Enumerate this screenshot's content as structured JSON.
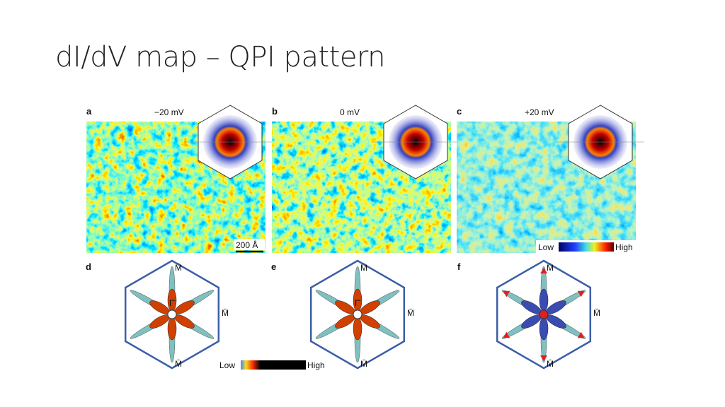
{
  "title": "dI/dV map – QPI pattern",
  "figure": {
    "top_panels": [
      {
        "label": "a",
        "energy": "−20 mV",
        "scale_bar": "200 Å"
      },
      {
        "label": "b",
        "energy": "0 mV"
      },
      {
        "label": "c",
        "energy": "+20 mV",
        "colorbar": {
          "low": "Low",
          "high": "High"
        }
      }
    ],
    "bottom_panels": [
      {
        "label": "d",
        "points": [
          "M̄",
          "M̄",
          "M̄",
          "Γ̄"
        ],
        "colorbar": {
          "low": "Low",
          "high": "High"
        }
      },
      {
        "label": "e",
        "points": [
          "M̄",
          "M̄",
          "M̄",
          "Γ̄"
        ]
      },
      {
        "label": "f",
        "points": [
          "M̄",
          "M̄",
          "M̄"
        ]
      }
    ]
  }
}
